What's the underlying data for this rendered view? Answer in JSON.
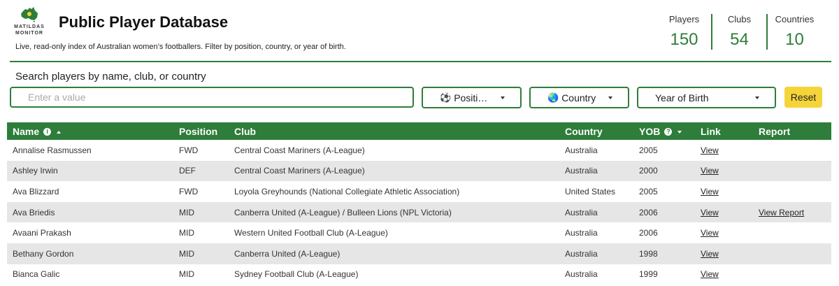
{
  "header": {
    "logo_text_line1": "MATILDAS",
    "logo_text_line2": "MONITOR",
    "title": "Public Player Database",
    "subtitle": "Live, read-only index of Australian women’s footballers. Filter by position, country, or year of birth."
  },
  "stats": [
    {
      "label": "Players",
      "value": "150"
    },
    {
      "label": "Clubs",
      "value": "54"
    },
    {
      "label": "Countries",
      "value": "10"
    }
  ],
  "search": {
    "label": "Search players by name, club, or country",
    "placeholder": "Enter a value",
    "value": ""
  },
  "filters": {
    "position": {
      "icon": "⚽",
      "label": "Positi…"
    },
    "country": {
      "icon": "🌏",
      "label": "Country"
    },
    "yob": {
      "label": "Year of Birth"
    },
    "reset_label": "Reset"
  },
  "table": {
    "columns": [
      "Name",
      "Position",
      "Club",
      "Country",
      "YOB",
      "Link",
      "Report"
    ],
    "rows": [
      {
        "name": "Annalise Rasmussen",
        "position": "FWD",
        "club": "Central Coast Mariners (A-League)",
        "country": "Australia",
        "yob": "2005",
        "link": "View",
        "report": ""
      },
      {
        "name": "Ashley Irwin",
        "position": "DEF",
        "club": "Central Coast Mariners (A-League)",
        "country": "Australia",
        "yob": "2000",
        "link": "View",
        "report": ""
      },
      {
        "name": "Ava Blizzard",
        "position": "FWD",
        "club": "Loyola Greyhounds (National Collegiate Athletic Association)",
        "country": "United States",
        "yob": "2005",
        "link": "View",
        "report": ""
      },
      {
        "name": "Ava Briedis",
        "position": "MID",
        "club": "Canberra United (A-League) / Bulleen Lions (NPL Victoria)",
        "country": "Australia",
        "yob": "2006",
        "link": "View",
        "report": "View Report"
      },
      {
        "name": "Avaani Prakash",
        "position": "MID",
        "club": "Western United Football Club (A-League)",
        "country": "Australia",
        "yob": "2006",
        "link": "View",
        "report": ""
      },
      {
        "name": "Bethany Gordon",
        "position": "MID",
        "club": "Canberra United (A-League)",
        "country": "Australia",
        "yob": "1998",
        "link": "View",
        "report": ""
      },
      {
        "name": "Bianca Galic",
        "position": "MID",
        "club": "Sydney Football Club (A-League)",
        "country": "Australia",
        "yob": "1999",
        "link": "View",
        "report": ""
      }
    ]
  },
  "colors": {
    "accent": "#2e7d3a",
    "reset": "#f5d43a",
    "stripe": "#e6e6e6"
  }
}
